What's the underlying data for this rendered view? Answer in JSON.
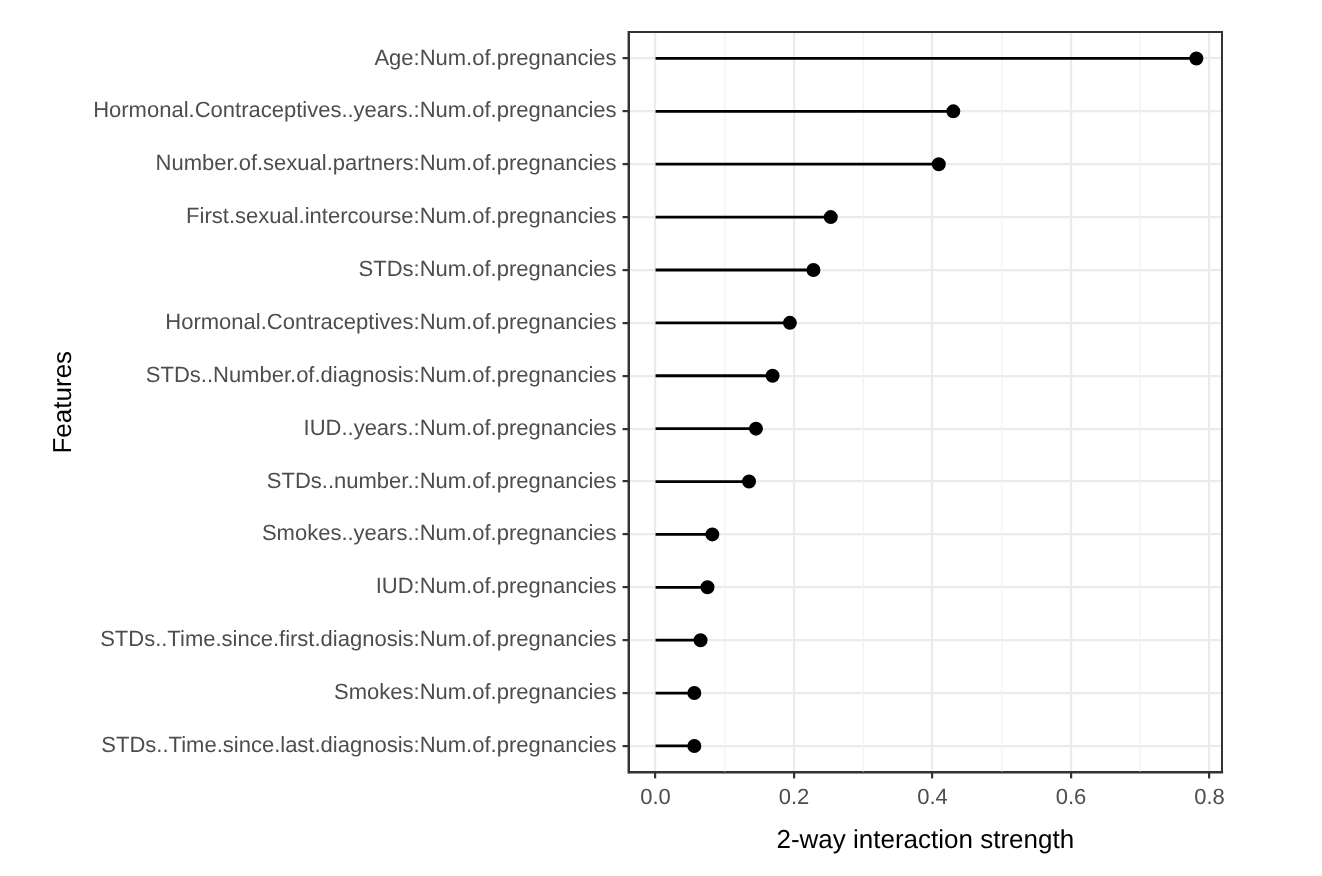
{
  "chart_data": {
    "type": "lollipop",
    "orientation": "horizontal",
    "xlabel": "2-way interaction strength",
    "ylabel": "Features",
    "categories": [
      "Age:Num.of.pregnancies",
      "Hormonal.Contraceptives..years.:Num.of.pregnancies",
      "Number.of.sexual.partners:Num.of.pregnancies",
      "First.sexual.intercourse:Num.of.pregnancies",
      "STDs:Num.of.pregnancies",
      "Hormonal.Contraceptives:Num.of.pregnancies",
      "STDs..Number.of.diagnosis:Num.of.pregnancies",
      "IUD..years.:Num.of.pregnancies",
      "STDs..number.:Num.of.pregnancies",
      "Smokes..years.:Num.of.pregnancies",
      "IUD:Num.of.pregnancies",
      "STDs..Time.since.first.diagnosis:Num.of.pregnancies",
      "Smokes:Num.of.pregnancies",
      "STDs..Time.since.last.diagnosis:Num.of.pregnancies"
    ],
    "values": [
      0.781,
      0.43,
      0.409,
      0.253,
      0.228,
      0.194,
      0.169,
      0.145,
      0.135,
      0.082,
      0.075,
      0.065,
      0.056,
      0.056
    ],
    "color": "#000000",
    "marker": "circle",
    "xlim": [
      -0.039,
      0.818
    ],
    "xticks": [
      {
        "value": 0,
        "label": "0.0"
      },
      0.2,
      0.4,
      0.6,
      0.8
    ],
    "grid": true
  }
}
